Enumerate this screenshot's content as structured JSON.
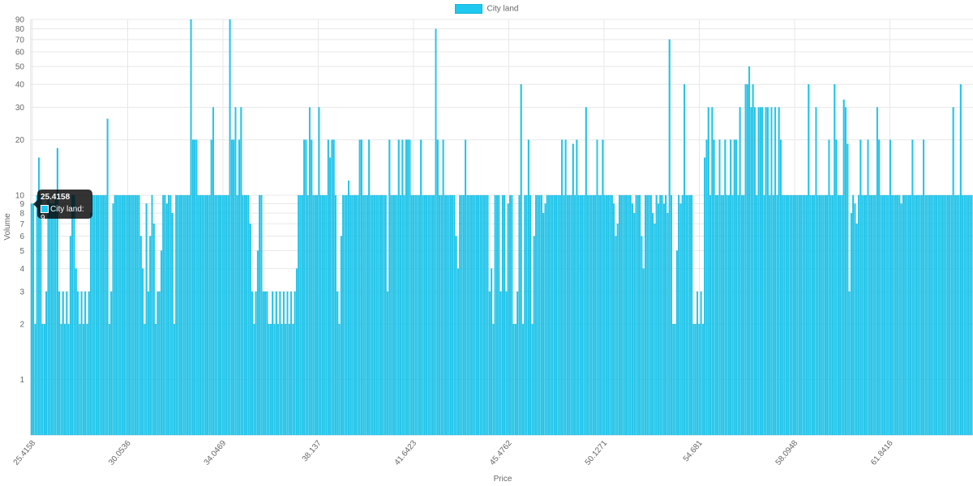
{
  "colors": {
    "bar": "#1ec8ee",
    "bar_border": "#12b4da",
    "grid": "#e8e8e8",
    "text": "#666666"
  },
  "legend": {
    "label": "City land"
  },
  "tooltip": {
    "title": "25.4158",
    "label": "City land: 9"
  },
  "chart_data": {
    "type": "bar",
    "xlabel": "Price",
    "ylabel": "Volume",
    "y_scale": "log",
    "ylim": [
      0.5,
      90
    ],
    "yticks": [
      1,
      2,
      3,
      4,
      5,
      6,
      7,
      8,
      9,
      10,
      20,
      30,
      40,
      50,
      60,
      70,
      80,
      90
    ],
    "xtick_labels": [
      "25.4158",
      "30.0536",
      "34.0469",
      "38.137",
      "41.6423",
      "45.4762",
      "50.1271",
      "54.681",
      "58.0948",
      "61.8416"
    ],
    "grid": true,
    "legend_position": "top",
    "series": [
      {
        "name": "City land",
        "values": [
          9,
          9,
          2,
          10,
          16,
          10,
          2,
          2,
          3,
          10,
          9,
          9,
          9,
          10,
          18,
          3,
          2,
          3,
          2,
          3,
          2,
          6,
          10,
          10,
          4,
          3,
          2,
          3,
          2,
          3,
          2,
          3,
          8,
          10,
          10,
          10,
          10,
          10,
          10,
          10,
          10,
          26,
          2,
          3,
          9,
          10,
          10,
          10,
          10,
          10,
          10,
          10,
          10,
          10,
          10,
          10,
          10,
          10,
          10,
          6,
          4,
          2,
          9,
          3,
          6,
          10,
          7,
          2,
          3,
          3,
          5,
          10,
          10,
          9,
          10,
          10,
          8,
          2,
          10,
          10,
          10,
          10,
          10,
          10,
          10,
          10,
          90,
          20,
          20,
          20,
          10,
          10,
          10,
          10,
          10,
          10,
          10,
          20,
          30,
          10,
          10,
          10,
          10,
          10,
          10,
          10,
          10,
          90,
          20,
          20,
          30,
          10,
          20,
          30,
          10,
          10,
          10,
          10,
          7,
          3,
          2,
          3,
          5,
          10,
          10,
          3,
          3,
          3,
          2,
          2,
          3,
          2,
          3,
          2,
          3,
          2,
          3,
          2,
          3,
          2,
          3,
          2,
          3,
          4,
          10,
          10,
          10,
          20,
          20,
          10,
          30,
          20,
          10,
          10,
          10,
          30,
          10,
          10,
          10,
          10,
          20,
          16,
          20,
          20,
          10,
          3,
          2,
          6,
          10,
          10,
          10,
          12,
          10,
          10,
          10,
          10,
          10,
          20,
          20,
          10,
          10,
          10,
          20,
          10,
          10,
          10,
          10,
          10,
          10,
          10,
          10,
          10,
          3,
          20,
          10,
          10,
          10,
          10,
          20,
          10,
          20,
          10,
          20,
          20,
          20,
          10,
          10,
          10,
          10,
          10,
          20,
          10,
          10,
          10,
          10,
          10,
          10,
          10,
          80,
          20,
          10,
          10,
          20,
          10,
          10,
          10,
          10,
          10,
          10,
          6,
          4,
          10,
          10,
          10,
          20,
          10,
          10,
          10,
          10,
          10,
          10,
          10,
          10,
          10,
          10,
          10,
          10,
          3,
          4,
          2,
          10,
          10,
          10,
          3,
          10,
          10,
          3,
          9,
          10,
          10,
          2,
          2,
          3,
          10,
          40,
          2,
          10,
          10,
          20,
          10,
          2,
          6,
          10,
          10,
          10,
          10,
          8,
          9,
          10,
          10,
          10,
          10,
          10,
          10,
          10,
          10,
          20,
          10,
          20,
          10,
          10,
          10,
          19,
          10,
          20,
          10,
          10,
          10,
          10,
          30,
          10,
          10,
          10,
          10,
          10,
          20,
          10,
          10,
          20,
          10,
          10,
          10,
          10,
          10,
          9,
          6,
          7,
          10,
          10,
          10,
          10,
          10,
          10,
          10,
          9,
          8,
          10,
          10,
          10,
          6,
          4,
          10,
          10,
          10,
          10,
          8,
          7,
          10,
          9,
          10,
          10,
          9,
          10,
          8,
          70,
          10,
          2,
          2,
          5,
          10,
          9,
          10,
          40,
          10,
          10,
          10,
          10,
          2,
          2,
          3,
          2,
          3,
          2,
          16,
          20,
          30,
          10,
          30,
          20,
          10,
          10,
          20,
          10,
          10,
          20,
          10,
          10,
          20,
          10,
          20,
          20,
          10,
          30,
          10,
          10,
          40,
          40,
          50,
          30,
          40,
          30,
          10,
          30,
          30,
          30,
          10,
          30,
          30,
          10,
          30,
          10,
          30,
          10,
          30,
          20,
          10,
          10,
          10,
          10,
          10,
          10,
          10,
          10,
          10,
          10,
          10,
          10,
          10,
          10,
          40,
          10,
          10,
          10,
          30,
          10,
          10,
          10,
          10,
          10,
          10,
          20,
          10,
          10,
          40,
          20,
          10,
          10,
          10,
          33,
          30,
          19,
          3,
          8,
          10,
          9,
          7,
          10,
          20,
          10,
          10,
          10,
          20,
          10,
          10,
          10,
          10,
          30,
          20,
          10,
          10,
          10,
          10,
          10,
          20,
          10,
          10,
          10,
          10,
          10,
          9,
          10,
          10,
          10,
          10,
          10,
          20,
          10,
          10,
          10,
          10,
          10,
          20,
          10,
          10,
          10,
          10,
          10,
          10,
          10,
          10,
          10,
          10,
          10,
          10,
          10,
          10,
          10,
          30,
          10,
          10,
          10,
          40,
          10,
          10,
          10,
          10,
          10,
          10
        ]
      }
    ]
  }
}
